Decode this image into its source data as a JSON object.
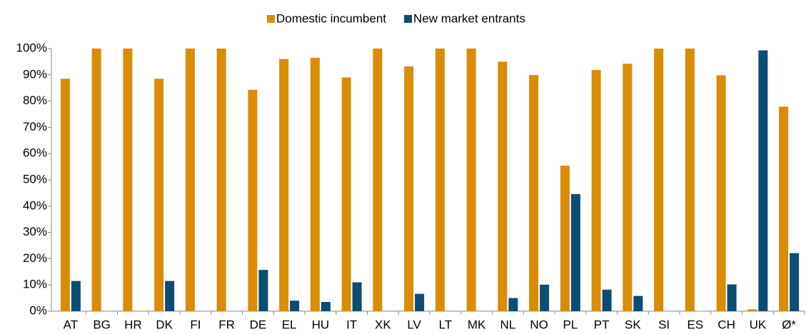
{
  "chart_data": {
    "type": "bar",
    "categories": [
      "AT",
      "BG",
      "HR",
      "DK",
      "FI",
      "FR",
      "DE",
      "EL",
      "HU",
      "IT",
      "XK",
      "LV",
      "LT",
      "MK",
      "NL",
      "NO",
      "PL",
      "PT",
      "SK",
      "SI",
      "ES",
      "CH",
      "UK",
      "Ø*"
    ],
    "series": [
      {
        "name": "Domestic incumbent",
        "color": "#d98c06",
        "values": [
          88.5,
          100,
          100,
          88.5,
          100,
          100,
          84.3,
          96,
          96.5,
          89,
          100,
          93.2,
          100,
          100,
          95,
          89.9,
          55.4,
          91.8,
          94.2,
          100,
          100,
          89.8,
          0.7,
          77.9
        ]
      },
      {
        "name": "New market entrants",
        "color": "#0d4d73",
        "values": [
          11.5,
          0,
          0,
          11.5,
          0,
          0,
          15.7,
          4,
          3.5,
          11,
          0,
          6.6,
          0,
          0,
          5,
          10.1,
          44.6,
          8.2,
          5.8,
          0,
          0,
          10.2,
          99.3,
          22.1
        ]
      }
    ],
    "ylim": [
      0,
      100
    ],
    "yticks": [
      {
        "value": 0,
        "label": "0%"
      },
      {
        "value": 10,
        "label": "10%"
      },
      {
        "value": 20,
        "label": "20%"
      },
      {
        "value": 30,
        "label": "30%"
      },
      {
        "value": 40,
        "label": "40%"
      },
      {
        "value": 50,
        "label": "50%"
      },
      {
        "value": 60,
        "label": "60%"
      },
      {
        "value": 70,
        "label": "70%"
      },
      {
        "value": 80,
        "label": "80%"
      },
      {
        "value": 90,
        "label": "90%"
      },
      {
        "value": 100,
        "label": "100%"
      }
    ],
    "grid": false,
    "legend": "top"
  }
}
